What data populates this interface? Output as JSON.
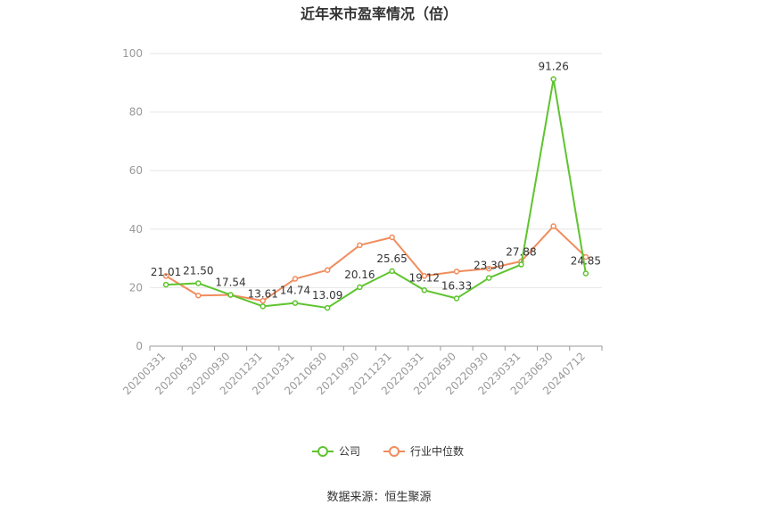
{
  "chart_data": {
    "type": "line",
    "title": "近年来市盈率情况（倍）",
    "categories": [
      "20200331",
      "20200630",
      "20200930",
      "20201231",
      "20210331",
      "20210630",
      "20210930",
      "20211231",
      "20220331",
      "20220630",
      "20220930",
      "20230331",
      "20230630",
      "20240712"
    ],
    "series": [
      {
        "name": "公司",
        "color": "#5ec42e",
        "values": [
          21.01,
          21.5,
          17.54,
          13.61,
          14.74,
          13.09,
          20.16,
          25.65,
          19.12,
          16.33,
          23.3,
          27.88,
          91.26,
          24.85
        ],
        "labels": [
          "21.01",
          "21.50",
          "17.54",
          "13.61",
          "14.74",
          "13.09",
          "20.16",
          "25.65",
          "19.12",
          "16.33",
          "23.30",
          "27.88",
          "91.26",
          "24.85"
        ]
      },
      {
        "name": "行业中位数",
        "color": "#f08c5c",
        "values": [
          24,
          17.3,
          17.5,
          15.5,
          23,
          26,
          34.5,
          37.2,
          24,
          25.5,
          26.5,
          29,
          41,
          30.5
        ]
      }
    ],
    "ylim": [
      0,
      100
    ],
    "yticks": [
      0,
      20,
      40,
      60,
      80,
      100
    ],
    "grid": true,
    "legend": "bottom-center",
    "xlabel": "",
    "ylabel": ""
  },
  "source": "数据来源：恒生聚源"
}
